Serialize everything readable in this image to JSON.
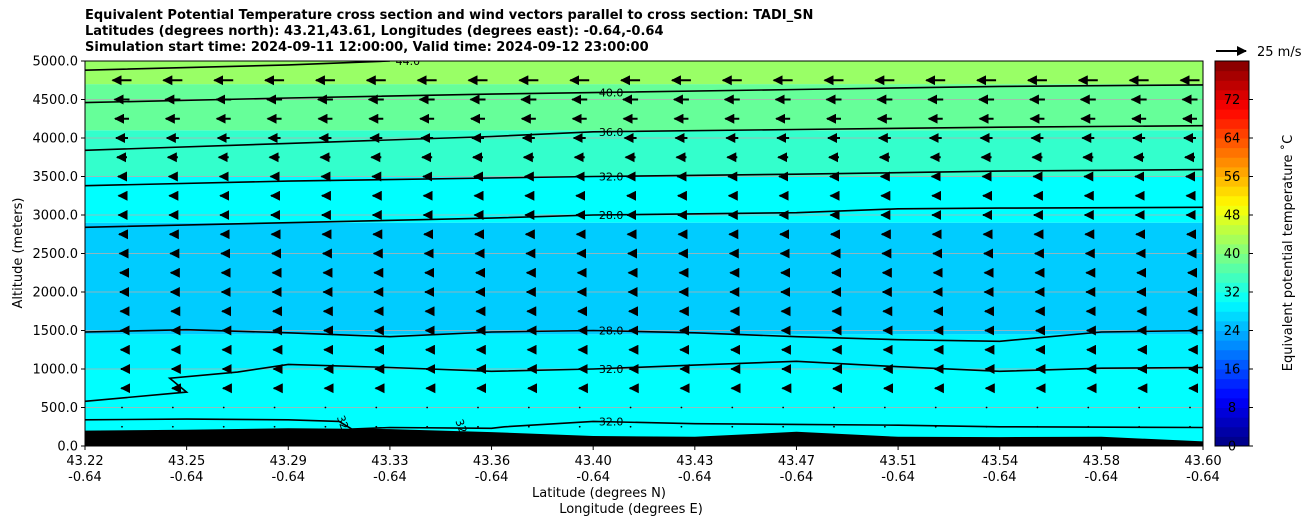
{
  "title_lines": [
    "Equivalent Potential Temperature cross section and wind vectors parallel to cross section: TADI_SN",
    "Latitudes (degrees north): 43.21,43.61, Longitudes (degrees east): -0.64,-0.64",
    "Simulation start time: 2024-09-11 12:00:00, Valid time: 2024-09-12 23:00:00"
  ],
  "chart_data": {
    "type": "contourf",
    "ylabel": "Altitude (meters)",
    "xlabel": "Latitude (degrees N)",
    "xlabel2": "Longitude (degrees E)",
    "ylim": [
      0,
      5000
    ],
    "yticks": [
      "0.0",
      "500.0",
      "1000.0",
      "1500.0",
      "2000.0",
      "2500.0",
      "3000.0",
      "3500.0",
      "4000.0",
      "4500.0",
      "5000.0"
    ],
    "xticks": [
      {
        "lat": "43.22",
        "lon": "-0.64"
      },
      {
        "lat": "43.25",
        "lon": "-0.64"
      },
      {
        "lat": "43.29",
        "lon": "-0.64"
      },
      {
        "lat": "43.33",
        "lon": "-0.64"
      },
      {
        "lat": "43.36",
        "lon": "-0.64"
      },
      {
        "lat": "43.40",
        "lon": "-0.64"
      },
      {
        "lat": "43.43",
        "lon": "-0.64"
      },
      {
        "lat": "43.47",
        "lon": "-0.64"
      },
      {
        "lat": "43.51",
        "lon": "-0.64"
      },
      {
        "lat": "43.54",
        "lon": "-0.64"
      },
      {
        "lat": "43.58",
        "lon": "-0.64"
      },
      {
        "lat": "43.60",
        "lon": "-0.64"
      }
    ],
    "grid": true,
    "colorbar": {
      "label": "Equivalent potential temperature ˚C",
      "min": 0,
      "max": 80,
      "ticks": [
        0,
        8,
        16,
        24,
        32,
        40,
        48,
        56,
        64,
        72
      ]
    },
    "fill_bands": [
      {
        "y0": 0,
        "y1": 1000,
        "theta": 30
      },
      {
        "y0": 1000,
        "y1": 1450,
        "theta": 29
      },
      {
        "y0": 1450,
        "y1": 2900,
        "theta": 26
      },
      {
        "y0": 2900,
        "y1": 3500,
        "theta": 30
      },
      {
        "y0": 3500,
        "y1": 4100,
        "theta": 34
      },
      {
        "y0": 4100,
        "y1": 4700,
        "theta": 38
      },
      {
        "y0": 4700,
        "y1": 5000,
        "theta": 42
      }
    ],
    "contours": [
      {
        "label": "44.0",
        "label_x": 43.33,
        "label_y": 5000,
        "points": [
          [
            43.22,
            4880
          ],
          [
            43.29,
            4950
          ],
          [
            43.33,
            5000
          ]
        ]
      },
      {
        "label": "40.0",
        "label_x": 43.4,
        "label_y": 4590,
        "points": [
          [
            43.22,
            4460
          ],
          [
            43.29,
            4520
          ],
          [
            43.36,
            4570
          ],
          [
            43.4,
            4590
          ],
          [
            43.47,
            4630
          ],
          [
            43.54,
            4670
          ],
          [
            43.6,
            4690
          ]
        ]
      },
      {
        "label": "36.0",
        "label_x": 43.4,
        "label_y": 4080,
        "points": [
          [
            43.22,
            3840
          ],
          [
            43.29,
            3930
          ],
          [
            43.36,
            4020
          ],
          [
            43.4,
            4080
          ],
          [
            43.47,
            4110
          ],
          [
            43.54,
            4140
          ],
          [
            43.6,
            4160
          ]
        ]
      },
      {
        "label": "32.0",
        "label_x": 43.4,
        "label_y": 3500,
        "points": [
          [
            43.22,
            3380
          ],
          [
            43.29,
            3440
          ],
          [
            43.36,
            3480
          ],
          [
            43.4,
            3500
          ],
          [
            43.47,
            3530
          ],
          [
            43.54,
            3570
          ],
          [
            43.6,
            3590
          ]
        ]
      },
      {
        "label": "28.0",
        "label_x": 43.4,
        "label_y": 3000,
        "points": [
          [
            43.22,
            2840
          ],
          [
            43.29,
            2900
          ],
          [
            43.36,
            2960
          ],
          [
            43.4,
            3000
          ],
          [
            43.47,
            3030
          ],
          [
            43.51,
            3080
          ],
          [
            43.54,
            3090
          ],
          [
            43.6,
            3100
          ]
        ]
      },
      {
        "label": "28.0",
        "label_x": 43.4,
        "label_y": 1500,
        "points": [
          [
            43.22,
            1480
          ],
          [
            43.25,
            1510
          ],
          [
            43.29,
            1470
          ],
          [
            43.33,
            1420
          ],
          [
            43.36,
            1480
          ],
          [
            43.4,
            1500
          ],
          [
            43.43,
            1470
          ],
          [
            43.47,
            1420
          ],
          [
            43.51,
            1380
          ],
          [
            43.54,
            1360
          ],
          [
            43.58,
            1480
          ],
          [
            43.6,
            1500
          ]
        ]
      },
      {
        "label": "32.0",
        "label_x": 43.4,
        "label_y": 1000,
        "points": [
          [
            43.22,
            580
          ],
          [
            43.25,
            700
          ],
          [
            43.245,
            880
          ],
          [
            43.27,
            960
          ],
          [
            43.29,
            1060
          ],
          [
            43.33,
            1020
          ],
          [
            43.36,
            970
          ],
          [
            43.4,
            1000
          ],
          [
            43.43,
            1050
          ],
          [
            43.47,
            1100
          ],
          [
            43.51,
            1030
          ],
          [
            43.54,
            970
          ],
          [
            43.58,
            1010
          ],
          [
            43.6,
            1020
          ]
        ]
      },
      {
        "label": "32.0",
        "label_x": 43.4,
        "label_y": 320,
        "points": [
          [
            43.22,
            340
          ],
          [
            43.25,
            350
          ],
          [
            43.29,
            340
          ],
          [
            43.31,
            320
          ],
          [
            43.315,
            220
          ],
          [
            43.33,
            240
          ],
          [
            43.36,
            230
          ],
          [
            43.365,
            250
          ],
          [
            43.4,
            320
          ],
          [
            43.43,
            290
          ],
          [
            43.47,
            280
          ],
          [
            43.51,
            270
          ],
          [
            43.54,
            250
          ],
          [
            43.6,
            240
          ]
        ]
      }
    ],
    "inline_labels": [
      {
        "text": "32",
        "x": 43.31,
        "y": 290
      },
      {
        "text": "32",
        "x": 43.35,
        "y": 240
      }
    ],
    "terrain": [
      [
        43.22,
        200
      ],
      [
        43.25,
        210
      ],
      [
        43.29,
        230
      ],
      [
        43.33,
        220
      ],
      [
        43.36,
        180
      ],
      [
        43.4,
        130
      ],
      [
        43.43,
        120
      ],
      [
        43.47,
        185
      ],
      [
        43.51,
        120
      ],
      [
        43.54,
        115
      ],
      [
        43.58,
        120
      ],
      [
        43.6,
        60
      ]
    ],
    "wind_levels": [
      {
        "z": 4750,
        "u": -9.5
      },
      {
        "z": 4500,
        "u": -7.5
      },
      {
        "z": 4250,
        "u": -7
      },
      {
        "z": 4000,
        "u": -6
      },
      {
        "z": 3750,
        "u": -5
      },
      {
        "z": 3500,
        "u": -4
      },
      {
        "z": 3250,
        "u": -3.5
      },
      {
        "z": 3000,
        "u": -3.5
      },
      {
        "z": 2750,
        "u": -3
      },
      {
        "z": 2500,
        "u": -2.5
      },
      {
        "z": 2250,
        "u": -2
      },
      {
        "z": 2000,
        "u": -2
      },
      {
        "z": 1750,
        "u": -1.6
      },
      {
        "z": 1500,
        "u": -1.4
      },
      {
        "z": 1250,
        "u": -1.2
      },
      {
        "z": 1000,
        "u": -1
      },
      {
        "z": 750,
        "u": -0.8
      },
      {
        "z": 500,
        "u": -0.6
      },
      {
        "z": 250,
        "u": -0.4
      }
    ],
    "wind_reference": {
      "label": "25 m/s",
      "value": 25
    }
  }
}
